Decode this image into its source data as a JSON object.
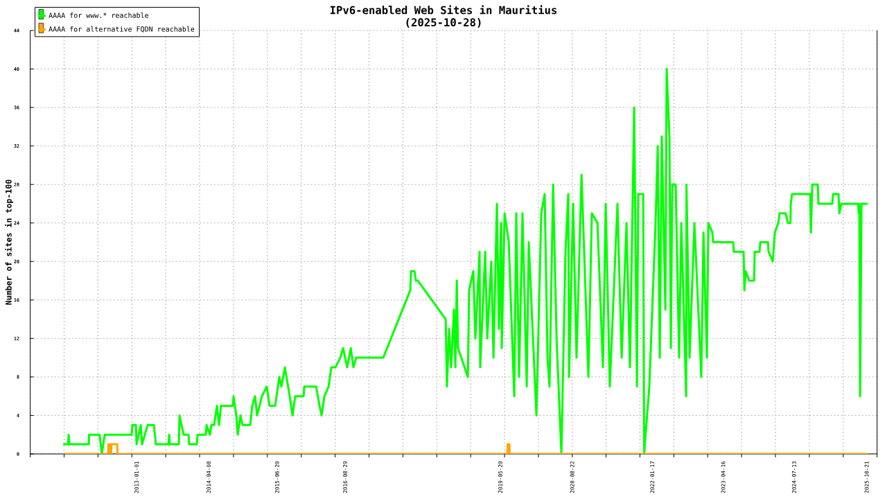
{
  "chart_data": {
    "type": "line",
    "title": "IPv6-enabled Web Sites in Mauritius",
    "subtitle": "(2025-10-28)",
    "ylabel": "Number of sites in top-100",
    "xlim": [
      "2011-02-20",
      "2025-12-27"
    ],
    "xticks": [
      {
        "value": "2011-02-20",
        "label": null
      },
      {
        "value": "2011-09-25",
        "label": null
      },
      {
        "value": "2012-04-29",
        "label": null
      },
      {
        "value": "2012-12-02",
        "label": null
      },
      {
        "value": "2013-01-01",
        "label": "2013-01-01"
      },
      {
        "value": "2013-07-07",
        "label": null
      },
      {
        "value": "2014-02-09",
        "label": null
      },
      {
        "value": "2014-04-08",
        "label": "2014-04-08"
      },
      {
        "value": "2014-09-14",
        "label": null
      },
      {
        "value": "2015-04-19",
        "label": null
      },
      {
        "value": "2015-06-20",
        "label": "2015-06-20"
      },
      {
        "value": "2015-11-22",
        "label": null
      },
      {
        "value": "2016-06-26",
        "label": null
      },
      {
        "value": "2016-08-29",
        "label": "2016-08-29"
      },
      {
        "value": "2017-01-29",
        "label": null
      },
      {
        "value": "2017-09-03",
        "label": null
      },
      {
        "value": "2018-04-08",
        "label": null
      },
      {
        "value": "2018-11-11",
        "label": null
      },
      {
        "value": "2019-05-20",
        "label": "2019-05-20"
      },
      {
        "value": "2019-06-16",
        "label": null
      },
      {
        "value": "2020-01-19",
        "label": null
      },
      {
        "value": "2020-08-22",
        "label": "2020-08-22"
      },
      {
        "value": "2020-08-23",
        "label": null
      },
      {
        "value": "2021-03-27",
        "label": null
      },
      {
        "value": "2021-10-30",
        "label": null
      },
      {
        "value": "2022-01-17",
        "label": "2022-01-17"
      },
      {
        "value": "2022-06-04",
        "label": null
      },
      {
        "value": "2023-01-07",
        "label": null
      },
      {
        "value": "2023-04-16",
        "label": "2023-04-16"
      },
      {
        "value": "2023-08-12",
        "label": null
      },
      {
        "value": "2024-03-16",
        "label": null
      },
      {
        "value": "2024-07-13",
        "label": "2024-07-13"
      },
      {
        "value": "2024-10-19",
        "label": null
      },
      {
        "value": "2025-05-24",
        "label": null
      },
      {
        "value": "2025-10-21",
        "label": "2025-10-21"
      },
      {
        "value": "2025-12-27",
        "label": null
      }
    ],
    "ylim": [
      0,
      44
    ],
    "yticks": [
      0,
      4,
      8,
      12,
      16,
      20,
      24,
      28,
      32,
      36,
      40,
      44
    ],
    "grid": true,
    "legend": "top left",
    "series": [
      {
        "name": "AAAA for www.* reachable",
        "color": "#00ff00",
        "x": [
          "2011-09-19",
          "2011-10-20",
          "2011-10-24",
          "2011-10-29",
          "2012-03-01",
          "2012-03-03",
          "2012-05-09",
          "2012-05-24",
          "2012-06-11",
          "2012-12-01",
          "2012-12-05",
          "2012-12-28",
          "2013-01-01",
          "2013-01-28",
          "2013-02-05",
          "2013-03-13",
          "2013-04-22",
          "2013-05-05",
          "2013-07-24",
          "2013-07-29",
          "2013-08-02",
          "2013-09-29",
          "2013-10-03",
          "2013-10-16",
          "2013-10-30",
          "2013-11-30",
          "2013-12-04",
          "2014-01-22",
          "2014-01-27",
          "2014-03-21",
          "2014-03-25",
          "2014-04-16",
          "2014-04-25",
          "2014-05-13",
          "2014-05-31",
          "2014-06-13",
          "2014-06-26",
          "2014-09-10",
          "2014-09-14",
          "2014-10-02",
          "2014-10-11",
          "2014-10-29",
          "2014-11-11",
          "2014-12-30",
          "2015-01-12",
          "2015-01-30",
          "2015-02-12",
          "2015-03-15",
          "2015-04-15",
          "2015-05-03",
          "2015-06-08",
          "2015-07-04",
          "2015-07-18",
          "2015-08-09",
          "2015-09-09",
          "2015-09-27",
          "2015-10-14",
          "2015-12-07",
          "2015-12-11",
          "2016-02-25",
          "2016-03-18",
          "2016-03-31",
          "2016-04-18",
          "2016-05-15",
          "2016-06-01",
          "2016-06-28",
          "2016-07-29",
          "2016-08-16",
          "2016-09-11",
          "2016-10-04",
          "2016-10-21",
          "2016-11-08",
          "2017-04-30",
          "2017-10-20",
          "2017-10-25",
          "2017-11-16",
          "2017-11-25",
          "2017-12-08",
          "2018-06-04",
          "2018-06-12",
          "2018-06-26",
          "2018-07-09",
          "2018-07-27",
          "2018-08-05",
          "2018-08-14",
          "2018-08-22",
          "2018-10-24",
          "2018-11-01",
          "2018-11-28",
          "2018-12-11",
          "2019-01-07",
          "2019-01-11",
          "2019-02-12",
          "2019-02-25",
          "2019-03-23",
          "2019-04-06",
          "2019-04-28",
          "2019-05-11",
          "2019-05-25",
          "2019-05-29",
          "2019-06-16",
          "2019-07-13",
          "2019-08-17",
          "2019-08-30",
          "2019-09-17",
          "2019-10-09",
          "2019-11-05",
          "2019-11-18",
          "2020-01-06",
          "2020-02-06",
          "2020-02-28",
          "2020-03-17",
          "2020-03-30",
          "2020-04-22",
          "2020-05-14",
          "2020-06-14",
          "2020-07-10",
          "2020-07-28",
          "2020-08-02",
          "2020-08-28",
          "2020-09-19",
          "2020-10-21",
          "2020-12-04",
          "2020-12-26",
          "2021-01-31",
          "2021-03-07",
          "2021-03-25",
          "2021-04-20",
          "2021-06-08",
          "2021-07-05",
          "2021-08-05",
          "2021-08-27",
          "2021-09-23",
          "2021-10-11",
          "2021-10-19",
          "2021-11-20",
          "2021-11-26",
          "2021-12-29",
          "2022-02-07",
          "2022-02-21",
          "2022-03-06",
          "2022-03-19",
          "2022-04-11",
          "2022-04-19",
          "2022-05-07",
          "2022-05-16",
          "2022-05-25",
          "2022-06-16",
          "2022-07-08",
          "2022-07-22",
          "2022-08-22",
          "2022-08-24",
          "2022-09-13",
          "2022-10-14",
          "2022-11-27",
          "2022-12-11",
          "2023-01-02",
          "2023-01-11",
          "2023-02-06",
          "2023-02-11",
          "2023-06-20",
          "2023-06-24",
          "2023-08-25",
          "2023-08-30",
          "2023-09-07",
          "2023-09-30",
          "2023-10-31",
          "2023-11-04",
          "2023-12-05",
          "2023-12-10",
          "2024-01-28",
          "2024-02-01",
          "2024-02-28",
          "2024-03-12",
          "2024-04-03",
          "2024-04-12",
          "2024-05-20",
          "2024-06-04",
          "2024-06-20",
          "2024-06-22",
          "2024-07-01",
          "2024-10-25",
          "2024-10-29",
          "2024-11-07",
          "2024-12-12",
          "2024-12-16",
          "2025-03-15",
          "2025-03-20",
          "2025-04-24",
          "2025-04-29",
          "2025-05-12",
          "2025-08-28",
          "2025-08-31",
          "2025-09-04",
          "2025-09-09",
          "2025-09-18",
          "2025-10-28"
        ],
        "values": [
          1,
          1,
          2,
          1,
          1,
          2,
          2,
          0,
          2,
          2,
          3,
          3,
          1,
          3,
          1,
          3,
          3,
          1,
          1,
          2,
          1,
          1,
          4,
          3,
          2,
          2,
          1,
          1,
          2,
          2,
          3,
          2,
          3,
          3,
          5,
          3,
          5,
          5,
          6,
          4,
          2,
          4,
          3,
          3,
          5,
          6,
          4,
          6,
          7,
          5,
          5,
          8,
          7,
          9,
          6,
          4,
          6,
          6,
          7,
          7,
          5,
          4,
          6,
          7,
          9,
          9,
          10,
          11,
          9,
          11,
          9,
          10,
          10,
          17,
          19,
          19,
          18,
          18,
          14,
          7,
          13,
          9,
          15,
          9,
          18,
          11,
          8,
          17,
          19,
          12,
          21,
          9,
          21,
          12,
          20,
          10,
          26,
          13,
          24,
          11,
          25,
          22,
          6,
          25,
          8,
          25,
          7,
          22,
          4,
          25,
          27,
          10,
          7,
          28,
          12,
          0,
          21,
          27,
          8,
          26,
          10,
          29,
          8,
          25,
          24,
          9,
          26,
          7,
          26,
          10,
          24,
          9,
          36,
          7,
          27,
          27,
          0,
          7,
          24,
          32,
          10,
          33,
          15,
          40,
          33,
          11,
          28,
          28,
          10,
          24,
          6,
          28,
          10,
          24,
          8,
          23,
          10,
          24,
          23,
          22,
          22,
          21,
          21,
          17,
          19,
          18,
          18,
          21,
          21,
          22,
          22,
          21,
          20,
          23,
          24,
          25,
          25,
          24,
          24,
          26,
          27,
          27,
          23,
          28,
          28,
          26,
          26,
          27,
          27,
          25,
          26,
          26,
          25,
          26,
          6,
          26,
          26
        ]
      },
      {
        "name": "AAAA for alternative FQDN reachable",
        "color": "#ffa500",
        "x": [
          "2011-09-19",
          "2012-07-03",
          "2012-07-05",
          "2012-07-14",
          "2012-07-16",
          "2012-07-23",
          "2012-07-24",
          "2012-08-30",
          "2012-09-01",
          "2019-07-04",
          "2019-07-06",
          "2019-07-17",
          "2019-07-19",
          "2025-10-28"
        ],
        "values": [
          0,
          0,
          1,
          1,
          0,
          0,
          1,
          1,
          0,
          0,
          1,
          1,
          0,
          0
        ]
      }
    ]
  }
}
